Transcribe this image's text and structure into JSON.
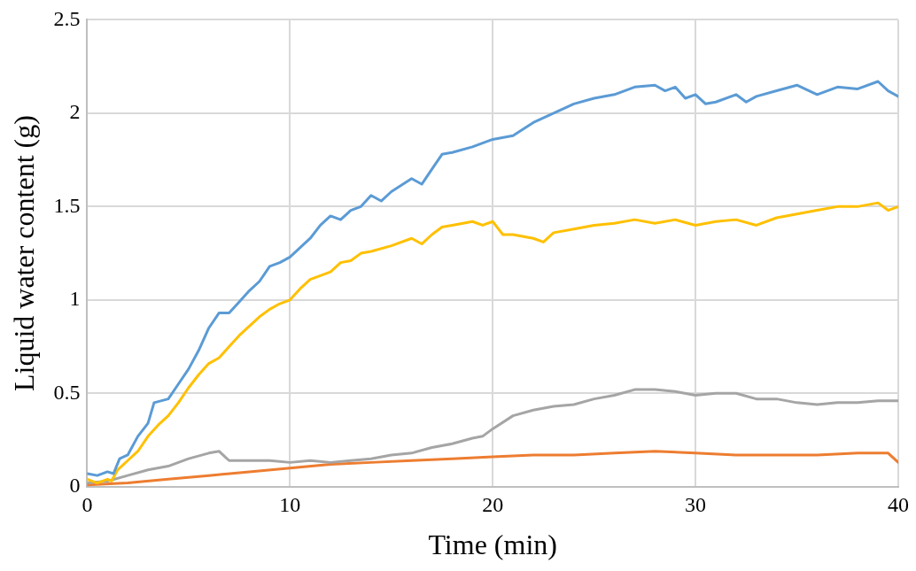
{
  "chart_data": {
    "type": "line",
    "xlabel": "Time (min)",
    "ylabel": "Liquid water content (g)",
    "xlim": [
      0,
      40
    ],
    "xticks": [
      0,
      10,
      20,
      30,
      40
    ],
    "ylim": [
      0,
      2.5
    ],
    "yticks": [
      0,
      0.5,
      1,
      1.5,
      2,
      2.5
    ],
    "grid": true,
    "legend": false,
    "marker": "none",
    "line_style": "solid",
    "series": [
      {
        "color": "#5b9bd5",
        "x": [
          0,
          0.5,
          1,
          1.3,
          1.6,
          2,
          2.5,
          3,
          3.3,
          4,
          4.5,
          5,
          5.5,
          6,
          6.5,
          7,
          7.5,
          8,
          8.5,
          9,
          9.5,
          10,
          11,
          11.5,
          12,
          12.5,
          13,
          13.5,
          14,
          14.5,
          15,
          16,
          16.5,
          17,
          17.5,
          18,
          19,
          20,
          21,
          22,
          23,
          24,
          25,
          26,
          27,
          28,
          28.5,
          29,
          29.5,
          30,
          30.5,
          31,
          32,
          32.5,
          33,
          34,
          35,
          36,
          37,
          38,
          39,
          39.5,
          40
        ],
        "values": [
          0.07,
          0.06,
          0.08,
          0.07,
          0.15,
          0.17,
          0.27,
          0.34,
          0.45,
          0.47,
          0.55,
          0.63,
          0.73,
          0.85,
          0.93,
          0.93,
          0.99,
          1.05,
          1.1,
          1.18,
          1.2,
          1.23,
          1.33,
          1.4,
          1.45,
          1.43,
          1.48,
          1.5,
          1.56,
          1.53,
          1.58,
          1.65,
          1.62,
          1.7,
          1.78,
          1.79,
          1.82,
          1.86,
          1.88,
          1.95,
          2.0,
          2.05,
          2.08,
          2.1,
          2.14,
          2.15,
          2.12,
          2.14,
          2.08,
          2.1,
          2.05,
          2.06,
          2.1,
          2.06,
          2.09,
          2.12,
          2.15,
          2.1,
          2.14,
          2.13,
          2.17,
          2.12,
          2.09
        ]
      },
      {
        "color": "#ffc000",
        "x": [
          0,
          0.5,
          1,
          1.2,
          1.5,
          2,
          2.5,
          3,
          3.5,
          4,
          4.5,
          5,
          5.5,
          6,
          6.5,
          7,
          7.5,
          8,
          8.5,
          9,
          9.5,
          10,
          10.5,
          11,
          12,
          12.5,
          13,
          13.5,
          14,
          15,
          16,
          16.5,
          17,
          17.5,
          18,
          19,
          19.5,
          20,
          20.5,
          21,
          22,
          22.5,
          23,
          24,
          25,
          26,
          27,
          28,
          29,
          30,
          31,
          32,
          33,
          34,
          35,
          36,
          37,
          38,
          39,
          39.5,
          40
        ],
        "values": [
          0.04,
          0.02,
          0.04,
          0.03,
          0.09,
          0.14,
          0.19,
          0.27,
          0.33,
          0.38,
          0.45,
          0.53,
          0.6,
          0.66,
          0.69,
          0.75,
          0.81,
          0.86,
          0.91,
          0.95,
          0.98,
          1.0,
          1.06,
          1.11,
          1.15,
          1.2,
          1.21,
          1.25,
          1.26,
          1.29,
          1.33,
          1.3,
          1.35,
          1.39,
          1.4,
          1.42,
          1.4,
          1.42,
          1.35,
          1.35,
          1.33,
          1.31,
          1.36,
          1.38,
          1.4,
          1.41,
          1.43,
          1.41,
          1.43,
          1.4,
          1.42,
          1.43,
          1.4,
          1.44,
          1.46,
          1.48,
          1.5,
          1.5,
          1.52,
          1.48,
          1.5
        ]
      },
      {
        "color": "#a5a5a5",
        "x": [
          0,
          1,
          2,
          3,
          4,
          5,
          6,
          6.5,
          7,
          8,
          9,
          10,
          11,
          12,
          13,
          14,
          15,
          16,
          17,
          18,
          19,
          19.5,
          20,
          21,
          22,
          23,
          24,
          25,
          26,
          27,
          28,
          29,
          30,
          31,
          32,
          33,
          34,
          35,
          36,
          37,
          38,
          39,
          40
        ],
        "values": [
          0.02,
          0.03,
          0.06,
          0.09,
          0.11,
          0.15,
          0.18,
          0.19,
          0.14,
          0.14,
          0.14,
          0.13,
          0.14,
          0.13,
          0.14,
          0.15,
          0.17,
          0.18,
          0.21,
          0.23,
          0.26,
          0.27,
          0.31,
          0.38,
          0.41,
          0.43,
          0.44,
          0.47,
          0.49,
          0.52,
          0.52,
          0.51,
          0.49,
          0.5,
          0.5,
          0.47,
          0.47,
          0.45,
          0.44,
          0.45,
          0.45,
          0.46,
          0.46
        ]
      },
      {
        "color": "#ed7d31",
        "x": [
          0,
          2,
          4,
          6,
          8,
          10,
          12,
          14,
          16,
          18,
          20,
          22,
          24,
          26,
          28,
          30,
          32,
          34,
          36,
          38,
          39.5,
          40
        ],
        "values": [
          0.01,
          0.02,
          0.04,
          0.06,
          0.08,
          0.1,
          0.12,
          0.13,
          0.14,
          0.15,
          0.16,
          0.17,
          0.17,
          0.18,
          0.19,
          0.18,
          0.17,
          0.17,
          0.17,
          0.18,
          0.18,
          0.13
        ]
      }
    ]
  }
}
